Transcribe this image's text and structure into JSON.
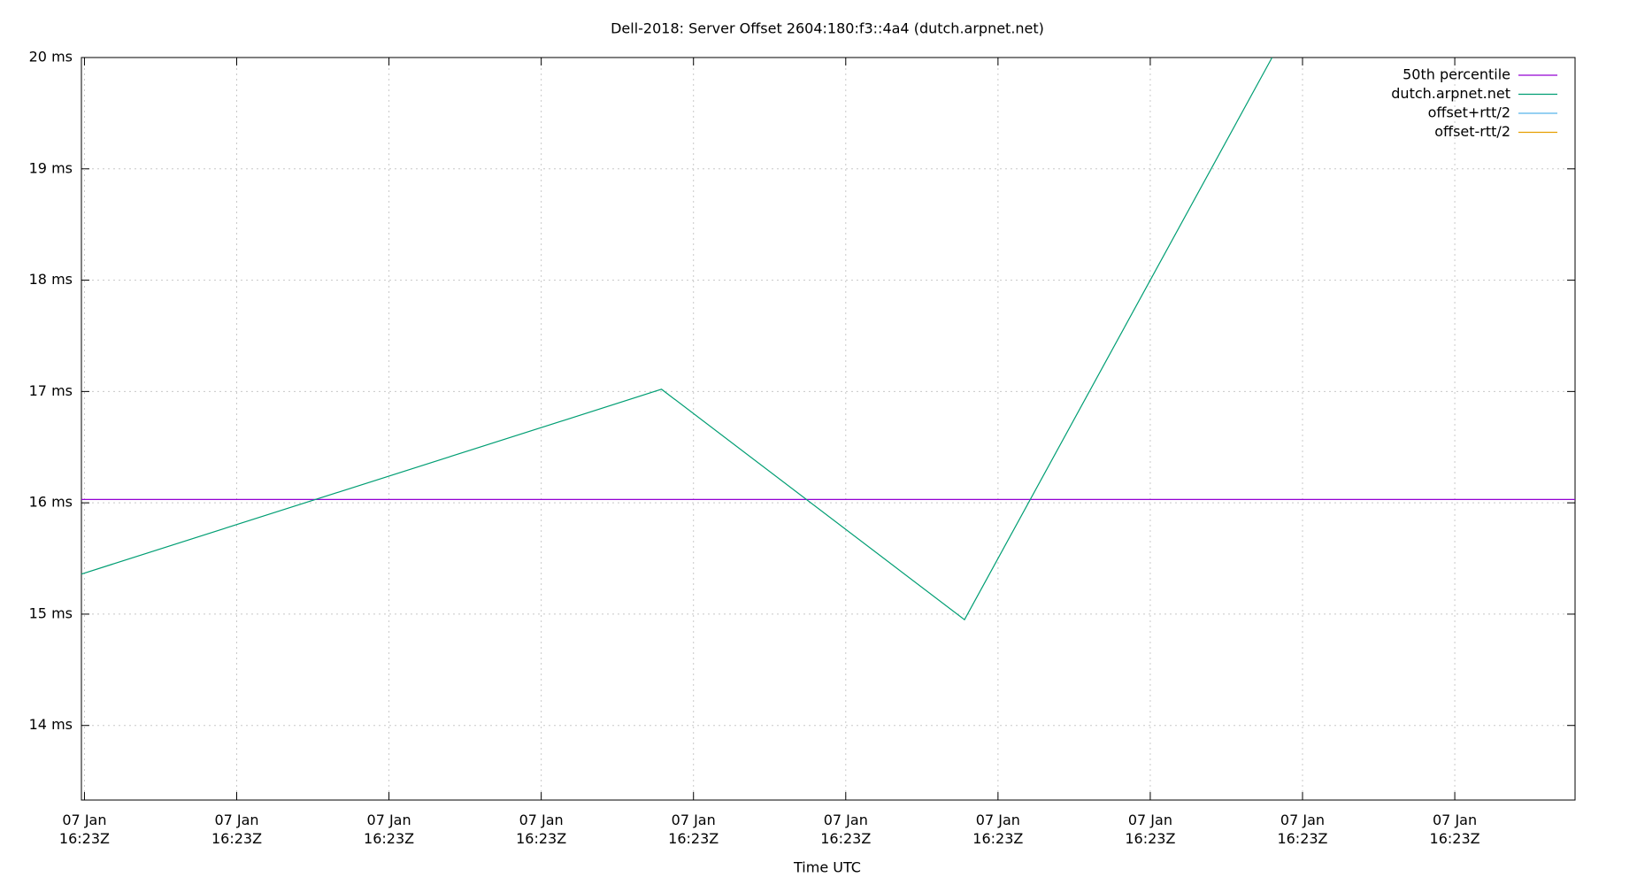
{
  "chart_data": {
    "type": "line",
    "title": "Dell-2018: Server Offset 2604:180:f3::4a4 (dutch.arpnet.net)",
    "x_label": "Time UTC",
    "x": [
      -0.02,
      3.79,
      5.78,
      7.8
    ],
    "reference_lines": [
      {
        "name": "50th percentile",
        "color": "#9400d3",
        "value": 16.03
      }
    ],
    "series": [
      {
        "name": "dutch.arpnet.net",
        "color": "#009e73",
        "values": [
          15.36,
          17.02,
          14.95,
          20.0
        ]
      },
      {
        "name": "offset+rtt/2",
        "color": "#56b4e9",
        "values": [
          null,
          null,
          null,
          null
        ]
      },
      {
        "name": "offset-rtt/2",
        "color": "#e69f00",
        "values": [
          null,
          null,
          null,
          null
        ]
      }
    ],
    "xlim": [
      -0.02,
      9.79
    ],
    "ylim": [
      13.33,
      20
    ],
    "xticks": [
      {
        "value": 0,
        "label": "07 Jan\n16:23Z"
      },
      {
        "value": 1,
        "label": "07 Jan\n16:23Z"
      },
      {
        "value": 2,
        "label": "07 Jan\n16:23Z"
      },
      {
        "value": 3,
        "label": "07 Jan\n16:23Z"
      },
      {
        "value": 4,
        "label": "07 Jan\n16:23Z"
      },
      {
        "value": 5,
        "label": "07 Jan\n16:23Z"
      },
      {
        "value": 6,
        "label": "07 Jan\n16:23Z"
      },
      {
        "value": 7,
        "label": "07 Jan\n16:23Z"
      },
      {
        "value": 8,
        "label": "07 Jan\n16:23Z"
      },
      {
        "value": 9,
        "label": "07 Jan\n16:23Z"
      }
    ],
    "yticks": [
      {
        "value": 14,
        "label": "14 ms"
      },
      {
        "value": 15,
        "label": "15 ms"
      },
      {
        "value": 16,
        "label": "16 ms"
      },
      {
        "value": 17,
        "label": "17 ms"
      },
      {
        "value": 18,
        "label": "18 ms"
      },
      {
        "value": 19,
        "label": "19 ms"
      },
      {
        "value": 20,
        "label": "20 ms"
      }
    ],
    "grid": true,
    "legend": "top-right"
  }
}
